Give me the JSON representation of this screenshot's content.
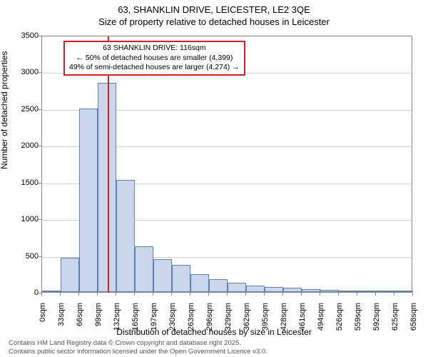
{
  "title": "63, SHANKLIN DRIVE, LEICESTER, LE2 3QE",
  "subtitle": "Size of property relative to detached houses in Leicester",
  "y_axis_label": "Number of detached properties",
  "x_axis_label": "Distribution of detached houses by size in Leicester",
  "chart": {
    "type": "histogram",
    "ylim": [
      0,
      3500
    ],
    "ytick_step": 500,
    "yticks": [
      0,
      500,
      1000,
      1500,
      2000,
      2500,
      3000,
      3500
    ],
    "xticks": [
      "0sqm",
      "33sqm",
      "66sqm",
      "99sqm",
      "132sqm",
      "165sqm",
      "197sqm",
      "230sqm",
      "263sqm",
      "296sqm",
      "329sqm",
      "362sqm",
      "395sqm",
      "428sqm",
      "461sqm",
      "494sqm",
      "526sqm",
      "559sqm",
      "592sqm",
      "625sqm",
      "658sqm"
    ],
    "bar_fill": "#cad6ea",
    "bar_border": "#6080b0",
    "grid_color": "#d0d0d0",
    "background_color": "#ffffff",
    "values": [
      0,
      470,
      2500,
      2850,
      1530,
      620,
      450,
      370,
      240,
      180,
      130,
      90,
      70,
      55,
      40,
      30,
      20,
      10,
      5,
      0
    ],
    "marker": {
      "position_sqm": 116,
      "color": "#d02020"
    }
  },
  "annotation": {
    "line1": "63 SHANKLIN DRIVE: 116sqm",
    "line2": "← 50% of detached houses are smaller (4,399)",
    "line3": "49% of semi-detached houses are larger (4,274) →",
    "border_color": "#d02020"
  },
  "footer": {
    "line1": "Contains HM Land Registry data © Crown copyright and database right 2025.",
    "line2": "Contains public sector information licensed under the Open Government Licence v3.0."
  }
}
